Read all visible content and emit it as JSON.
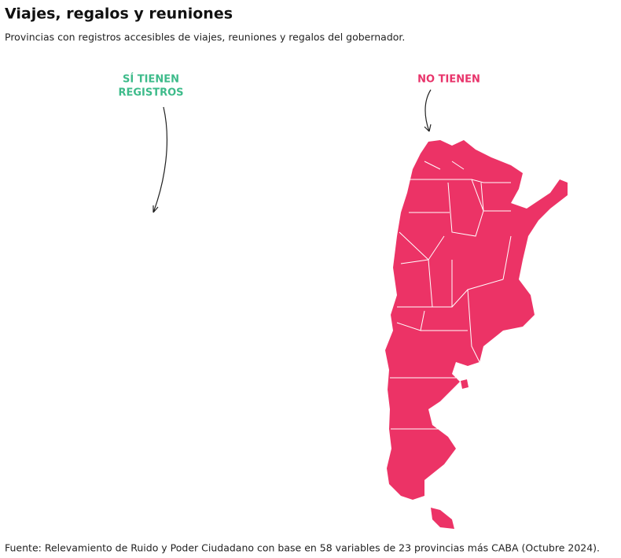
{
  "header": {
    "title": "Viajes, regalos y reuniones",
    "subtitle": "Provincias con registros accesibles de viajes, reuniones y regalos del gobernador."
  },
  "labels": {
    "yes": [
      "SÍ TIENEN",
      "REGISTROS"
    ],
    "no": [
      "NO TIENEN"
    ]
  },
  "footer": {
    "source": "Fuente: Relevamiento de Ruido y Poder Ciudadano con base en 58 variables de 23 provincias más CABA (Octubre 2024)."
  }
}
